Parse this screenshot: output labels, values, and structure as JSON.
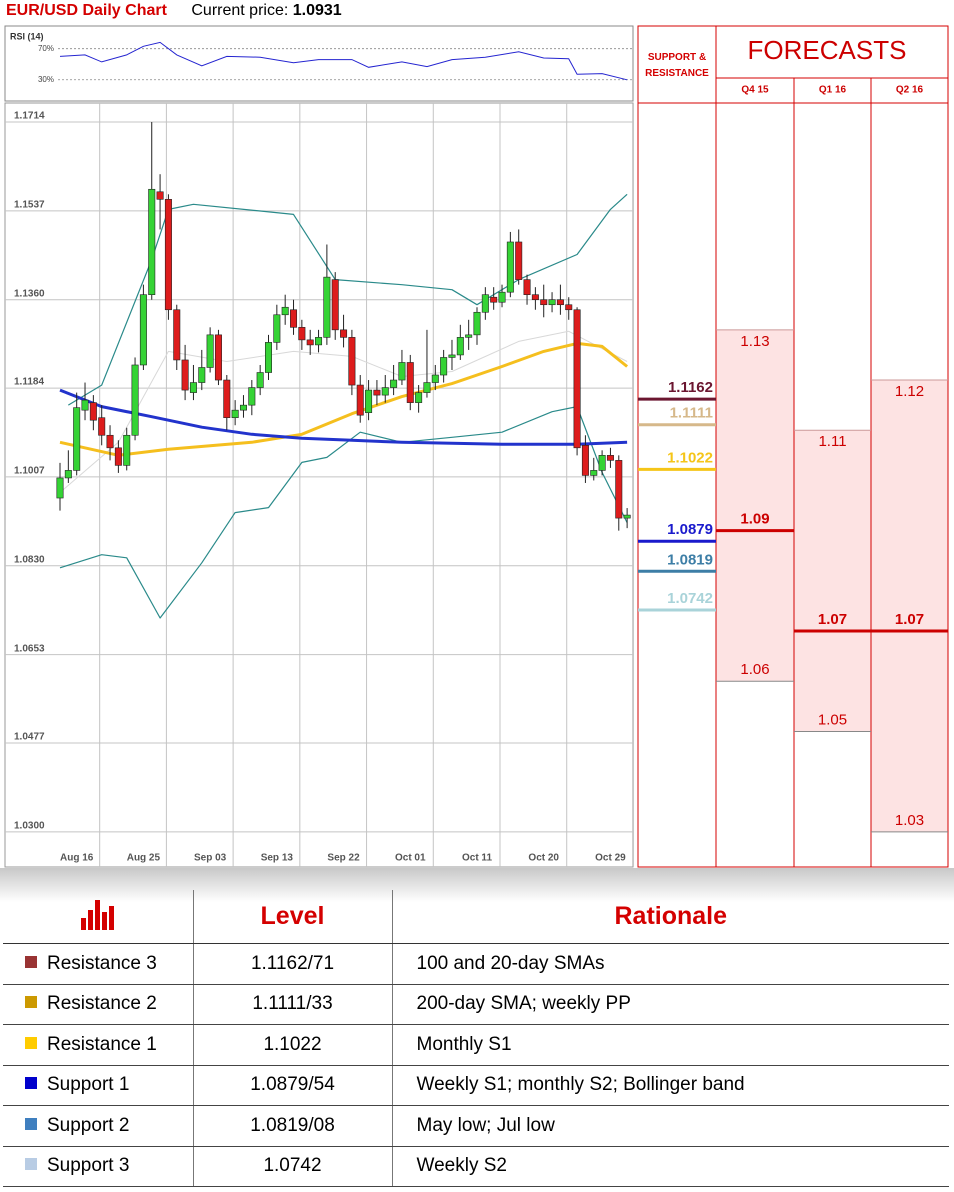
{
  "header": {
    "title": "EUR/USD Daily Chart",
    "price_label": "Current price:",
    "price": 1.0931
  },
  "chart_data": [
    {
      "type": "line",
      "title": "RSI (14)",
      "series": [
        {
          "color": "#2424d0",
          "x": [
            0,
            3,
            5,
            8,
            10,
            12,
            14,
            17,
            20,
            24,
            28,
            31,
            35,
            37,
            41,
            44,
            47,
            51,
            55,
            58,
            61,
            62,
            65,
            68
          ],
          "values": [
            60,
            62,
            53,
            62,
            73,
            78,
            62,
            48,
            60,
            59,
            52,
            56,
            56,
            46,
            53,
            47,
            56,
            59,
            66,
            58,
            57,
            37,
            38,
            30
          ]
        }
      ],
      "xlim": [
        0,
        68
      ],
      "ylim": [
        4,
        94
      ],
      "yticks": [
        {
          "value": 70,
          "label": "70%"
        },
        {
          "value": 30,
          "label": "30%"
        }
      ]
    },
    {
      "type": "candlestick",
      "categories": [
        null,
        null,
        "Aug 16",
        null,
        null,
        null,
        null,
        null,
        null,
        null,
        "Aug 25",
        null,
        null,
        null,
        null,
        null,
        null,
        null,
        "Sep 03",
        null,
        null,
        null,
        null,
        null,
        null,
        null,
        "Sep 13",
        null,
        null,
        null,
        null,
        null,
        null,
        null,
        "Sep 22",
        null,
        null,
        null,
        null,
        null,
        null,
        null,
        "Oct 01",
        null,
        null,
        null,
        null,
        null,
        null,
        null,
        "Oct 11",
        null,
        null,
        null,
        null,
        null,
        null,
        null,
        "Oct 20",
        null,
        null,
        null,
        null,
        null,
        null,
        null,
        "Oct 29",
        null,
        null
      ],
      "open": [
        1.0965,
        1.1005,
        1.102,
        1.114,
        1.1155,
        1.1125,
        1.109,
        1.1065,
        1.103,
        1.109,
        1.123,
        1.137,
        1.1575,
        1.156,
        1.134,
        1.124,
        1.1175,
        1.1195,
        1.1225,
        1.129,
        1.12,
        1.1125,
        1.114,
        1.115,
        1.1185,
        1.1215,
        1.1275,
        1.133,
        1.134,
        1.1305,
        1.128,
        1.127,
        1.1285,
        1.14,
        1.13,
        1.1285,
        1.119,
        1.1135,
        1.118,
        1.117,
        1.1185,
        1.12,
        1.1235,
        1.1155,
        1.1175,
        1.1195,
        1.121,
        1.1245,
        1.125,
        1.1285,
        1.129,
        1.1335,
        1.1365,
        1.1355,
        1.1375,
        1.1475,
        1.14,
        1.137,
        1.136,
        1.135,
        1.136,
        1.135,
        1.134,
        1.107,
        1.101,
        1.102,
        1.105,
        1.104,
        1.0925
      ],
      "high": [
        1.1035,
        1.106,
        1.1175,
        1.1195,
        1.117,
        1.115,
        1.111,
        1.108,
        1.1105,
        1.1245,
        1.139,
        1.1714,
        1.161,
        1.157,
        1.135,
        1.127,
        1.123,
        1.126,
        1.1305,
        1.13,
        1.121,
        1.116,
        1.117,
        1.12,
        1.123,
        1.129,
        1.135,
        1.137,
        1.136,
        1.132,
        1.13,
        1.13,
        1.147,
        1.1415,
        1.133,
        1.13,
        1.121,
        1.12,
        1.12,
        1.121,
        1.123,
        1.126,
        1.125,
        1.119,
        1.13,
        1.123,
        1.126,
        1.128,
        1.131,
        1.132,
        1.1345,
        1.1385,
        1.1385,
        1.139,
        1.1495,
        1.15,
        1.141,
        1.1385,
        1.139,
        1.1375,
        1.139,
        1.1365,
        1.1345,
        1.109,
        1.1045,
        1.106,
        1.1065,
        1.105,
        1.0945
      ],
      "low": [
        1.094,
        1.0995,
        1.101,
        1.112,
        1.11,
        1.107,
        1.104,
        1.1015,
        1.102,
        1.108,
        1.122,
        1.136,
        1.15,
        1.132,
        1.122,
        1.116,
        1.116,
        1.118,
        1.1215,
        1.119,
        1.11,
        1.111,
        1.1125,
        1.113,
        1.117,
        1.12,
        1.126,
        1.131,
        1.129,
        1.126,
        1.125,
        1.1255,
        1.127,
        1.128,
        1.1265,
        1.117,
        1.1115,
        1.112,
        1.115,
        1.1155,
        1.117,
        1.119,
        1.114,
        1.1135,
        1.1165,
        1.118,
        1.1195,
        1.122,
        1.124,
        1.126,
        1.127,
        1.132,
        1.134,
        1.1345,
        1.1365,
        1.139,
        1.135,
        1.134,
        1.1325,
        1.1335,
        1.133,
        1.132,
        1.105,
        1.0995,
        1.1,
        1.101,
        1.1025,
        1.09,
        1.0905
      ],
      "close": [
        1.1005,
        1.102,
        1.1145,
        1.116,
        1.112,
        1.109,
        1.1065,
        1.103,
        1.109,
        1.123,
        1.137,
        1.158,
        1.156,
        1.134,
        1.124,
        1.118,
        1.1195,
        1.1225,
        1.129,
        1.12,
        1.1125,
        1.114,
        1.115,
        1.1185,
        1.1215,
        1.1275,
        1.133,
        1.1345,
        1.1305,
        1.128,
        1.127,
        1.1285,
        1.1405,
        1.13,
        1.1285,
        1.119,
        1.113,
        1.118,
        1.117,
        1.1185,
        1.12,
        1.1235,
        1.1155,
        1.1175,
        1.1195,
        1.121,
        1.1245,
        1.125,
        1.1285,
        1.129,
        1.1335,
        1.137,
        1.1355,
        1.1375,
        1.1475,
        1.14,
        1.137,
        1.136,
        1.135,
        1.136,
        1.135,
        1.134,
        1.1065,
        1.101,
        1.102,
        1.105,
        1.104,
        1.0925,
        1.0931
      ],
      "up_color": "#35d335",
      "down_color": "#dd1c1c",
      "series": [
        {
          "color": "#d8d8d8",
          "x": [
            0,
            7,
            13,
            20,
            28,
            35,
            41,
            47,
            55,
            61,
            68
          ],
          "values": [
            1.0976,
            1.1076,
            1.1257,
            1.1237,
            1.1257,
            1.1247,
            1.1207,
            1.1217,
            1.1277,
            1.1297,
            1.1237
          ]
        },
        {
          "color": "#2a8a8a",
          "x": [
            1,
            5,
            11,
            13,
            16,
            28,
            33,
            41,
            47,
            50,
            55,
            62,
            66,
            68
          ],
          "values": [
            1.115,
            1.119,
            1.144,
            1.154,
            1.155,
            1.153,
            1.14,
            1.139,
            1.138,
            1.135,
            1.14,
            1.145,
            1.154,
            1.157
          ]
        },
        {
          "color": "#2a8a8a",
          "x": [
            0,
            5,
            8,
            12,
            17,
            21,
            25,
            29,
            32,
            36,
            41,
            47,
            53,
            59,
            62,
            65,
            68
          ],
          "values": [
            1.0826,
            1.0852,
            1.0846,
            1.0726,
            1.0836,
            1.0936,
            1.0946,
            1.1036,
            1.1046,
            1.1096,
            1.1076,
            1.1086,
            1.1096,
            1.1137,
            1.1147,
            1.1016,
            1.0916
          ]
        },
        {
          "color": "#f5bf1e",
          "x": [
            0,
            7,
            13,
            23,
            29,
            35,
            41,
            47,
            53,
            58,
            62,
            65,
            68
          ],
          "values": [
            1.1076,
            1.105,
            1.1062,
            1.1076,
            1.1092,
            1.1133,
            1.1167,
            1.1193,
            1.1227,
            1.1257,
            1.1273,
            1.1267,
            1.1227
          ]
        },
        {
          "color": "#2233cc",
          "x": [
            0,
            5,
            11,
            17,
            23,
            29,
            35,
            41,
            53,
            62,
            68
          ],
          "values": [
            1.118,
            1.1147,
            1.1127,
            1.1106,
            1.1092,
            1.1084,
            1.108,
            1.1076,
            1.1072,
            1.1072,
            1.1076
          ]
        }
      ],
      "xlim": [
        0,
        68
      ],
      "ylim": [
        1.023,
        1.1714
      ],
      "yticks": [
        1.1714,
        1.1537,
        {
          "value": 1.136,
          "label": "1.1360"
        },
        1.1184,
        1.1007,
        {
          "value": 1.083,
          "label": "1.0830"
        },
        1.0653,
        1.0477,
        {
          "value": 1.03,
          "label": "1.0300"
        }
      ],
      "grid": true
    },
    {
      "type": "levels",
      "title": "SUPPORT & RESISTANCE",
      "values": [
        1.1162,
        1.1111,
        1.1022,
        1.0879,
        1.0819,
        1.0742
      ],
      "colors": [
        "#6b1630",
        "#d6b88a",
        "#f5c518",
        "#1a1acc",
        "#3d7ea6",
        "#a9d3d9"
      ],
      "ylim": [
        1.023,
        1.1714
      ]
    },
    {
      "type": "forecast",
      "title": "FORECASTS",
      "categories": [
        "Q4 15",
        "Q1 16",
        "Q2 16"
      ],
      "high": [
        1.13,
        1.11,
        1.12
      ],
      "median": [
        1.09,
        1.07,
        1.07
      ],
      "low": [
        1.06,
        1.05,
        1.03
      ],
      "color": "#cc0000",
      "fill": "#fde3e3",
      "ylim": [
        1.023,
        1.1714
      ]
    }
  ],
  "table": {
    "header": [
      "Level",
      "Rationale"
    ],
    "rows": [
      [
        "Resistance 3",
        "1.1162/71",
        "100 and 20-day SMAs"
      ],
      [
        "Resistance 2",
        "1.1111/33",
        "200-day SMA; weekly PP"
      ],
      [
        "Resistance 1",
        "1.1022",
        "Monthly S1"
      ],
      [
        "Support 1",
        "1.0879/54",
        "Weekly S1; monthly S2; Bollinger band"
      ],
      [
        "Support 2",
        "1.0819/08",
        "May low; Jul low"
      ],
      [
        "Support 3",
        "1.0742",
        "Weekly S2"
      ]
    ],
    "colors": [
      "#993333",
      "#cc9900",
      "#ffcc00",
      "#0000cc",
      "#3f7fbf",
      "#b8cce4"
    ]
  }
}
